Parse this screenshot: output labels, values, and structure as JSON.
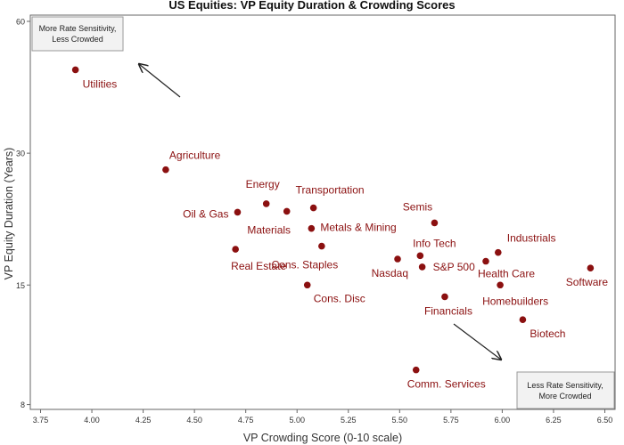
{
  "chart_data": {
    "type": "scatter",
    "title": "US Equities: VP Equity Duration & Crowding Scores",
    "xlabel": "VP Crowding Score (0-10 scale)",
    "ylabel": "VP Equity Duration (Years)",
    "xlim": [
      3.7,
      6.55
    ],
    "ylim": [
      7.8,
      62
    ],
    "y_scale": "log",
    "x_ticks": [
      "3.75",
      "4.00",
      "4.25",
      "4.50",
      "4.75",
      "5.00",
      "5.25",
      "5.50",
      "5.75",
      "6.00",
      "6.25",
      "6.50"
    ],
    "x_tick_values": [
      3.75,
      4.0,
      4.25,
      4.5,
      4.75,
      5.0,
      5.25,
      5.5,
      5.75,
      6.0,
      6.25,
      6.5
    ],
    "y_ticks": [
      "8",
      "15",
      "30",
      "60"
    ],
    "y_tick_values": [
      8,
      15,
      30,
      60
    ],
    "point_color": "#8b1010",
    "points": [
      {
        "label": "Utilities",
        "x": 3.92,
        "y": 46.5,
        "anchor": "start"
      },
      {
        "label": "Agriculture",
        "x": 4.36,
        "y": 27.5,
        "anchor": "start"
      },
      {
        "label": "Energy",
        "x": 4.85,
        "y": 23.0,
        "anchor": "middle"
      },
      {
        "label": "Oil & Gas",
        "x": 4.71,
        "y": 22.0,
        "anchor": "end"
      },
      {
        "label": "Materials",
        "x": 4.95,
        "y": 22.1,
        "anchor": "middle"
      },
      {
        "label": "Transportation",
        "x": 5.08,
        "y": 22.5,
        "anchor": "start"
      },
      {
        "label": "Metals & Mining",
        "x": 5.07,
        "y": 20.2,
        "anchor": "start"
      },
      {
        "label": "Cons. Staples",
        "x": 5.12,
        "y": 18.4,
        "anchor": "middle"
      },
      {
        "label": "Real Estate",
        "x": 4.7,
        "y": 18.1,
        "anchor": "start"
      },
      {
        "label": "Cons. Disc",
        "x": 5.05,
        "y": 15.0,
        "anchor": "start"
      },
      {
        "label": "Nasdaq",
        "x": 5.49,
        "y": 17.2,
        "anchor": "end"
      },
      {
        "label": "Semis",
        "x": 5.67,
        "y": 20.8,
        "anchor": "middle"
      },
      {
        "label": "Info Tech",
        "x": 5.6,
        "y": 17.5,
        "anchor": "middle"
      },
      {
        "label": "S&P 500",
        "x": 5.61,
        "y": 16.5,
        "anchor": "start"
      },
      {
        "label": "Financials",
        "x": 5.72,
        "y": 14.1,
        "anchor": "middle"
      },
      {
        "label": "Industrials",
        "x": 5.98,
        "y": 17.8,
        "anchor": "start"
      },
      {
        "label": "Health Care",
        "x": 5.92,
        "y": 17.0,
        "anchor": "middle"
      },
      {
        "label": "Homebuilders",
        "x": 5.99,
        "y": 15.0,
        "anchor": "start"
      },
      {
        "label": "Biotech",
        "x": 6.1,
        "y": 12.5,
        "anchor": "start"
      },
      {
        "label": "Software",
        "x": 6.43,
        "y": 16.4,
        "anchor": "middle"
      },
      {
        "label": "Comm. Services",
        "x": 5.58,
        "y": 9.6,
        "anchor": "middle"
      }
    ],
    "annotations": {
      "top_left": [
        "More Rate Sensitivity,",
        "Less Crowded"
      ],
      "bottom_right": [
        "Less Rate Sensitivity,",
        "More Crowded"
      ]
    },
    "grid": false
  }
}
